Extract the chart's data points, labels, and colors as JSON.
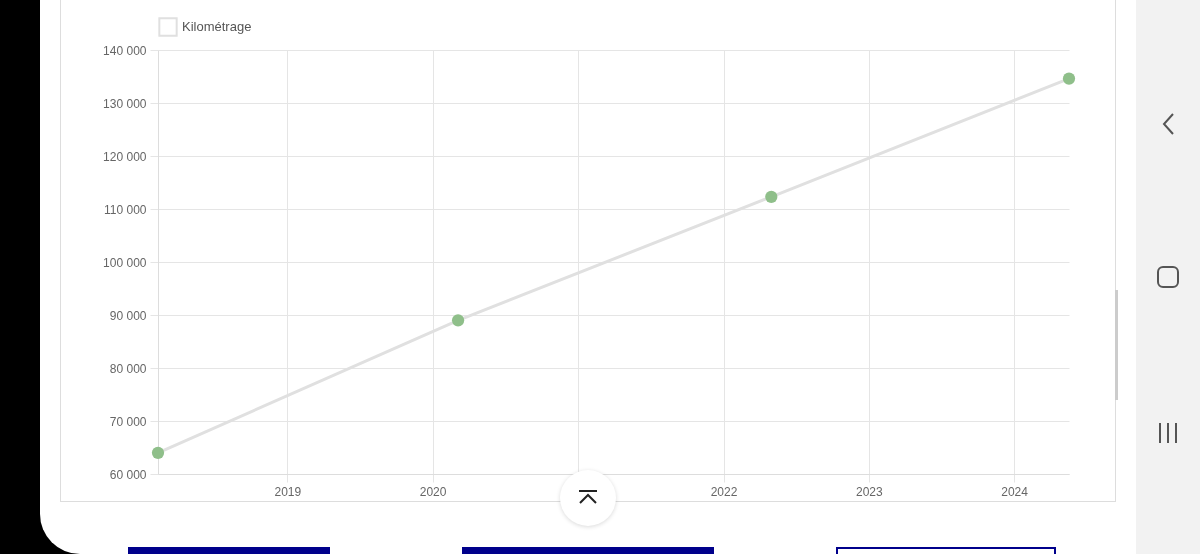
{
  "chart_data": {
    "type": "line",
    "x": [
      "2018-02-10",
      "2020-03-05",
      "2022-05-01",
      "2024-05-18"
    ],
    "series": [
      {
        "name": "Kilométrage",
        "color": "#e0e0e0",
        "colors": [
          "#8fbf8a",
          "#8fbf8a",
          "#8fbf8a",
          "#8fbf8a"
        ],
        "values": [
          64000,
          89000,
          112300,
          134600
        ]
      }
    ],
    "xlim": [
      "2018-02-10",
      "2024-05-18"
    ],
    "xticks": [
      "2019",
      "2020",
      {
        "value": "2021",
        "label": null
      },
      "2022",
      "2023",
      "2024"
    ],
    "ylim": [
      60000,
      140000
    ],
    "yticks": [
      {
        "value": 60000,
        "label": "60 000"
      },
      {
        "value": 70000,
        "label": "70 000"
      },
      {
        "value": 80000,
        "label": "80 000"
      },
      {
        "value": 90000,
        "label": "90 000"
      },
      {
        "value": 100000,
        "label": "100 000"
      },
      {
        "value": 110000,
        "label": "110 000"
      },
      {
        "value": 120000,
        "label": "120 000"
      },
      {
        "value": 130000,
        "label": "130 000"
      },
      {
        "value": 140000,
        "label": "140 000"
      }
    ],
    "grid": true,
    "legend": "top",
    "marker": "circle",
    "line_style": "solid"
  }
}
